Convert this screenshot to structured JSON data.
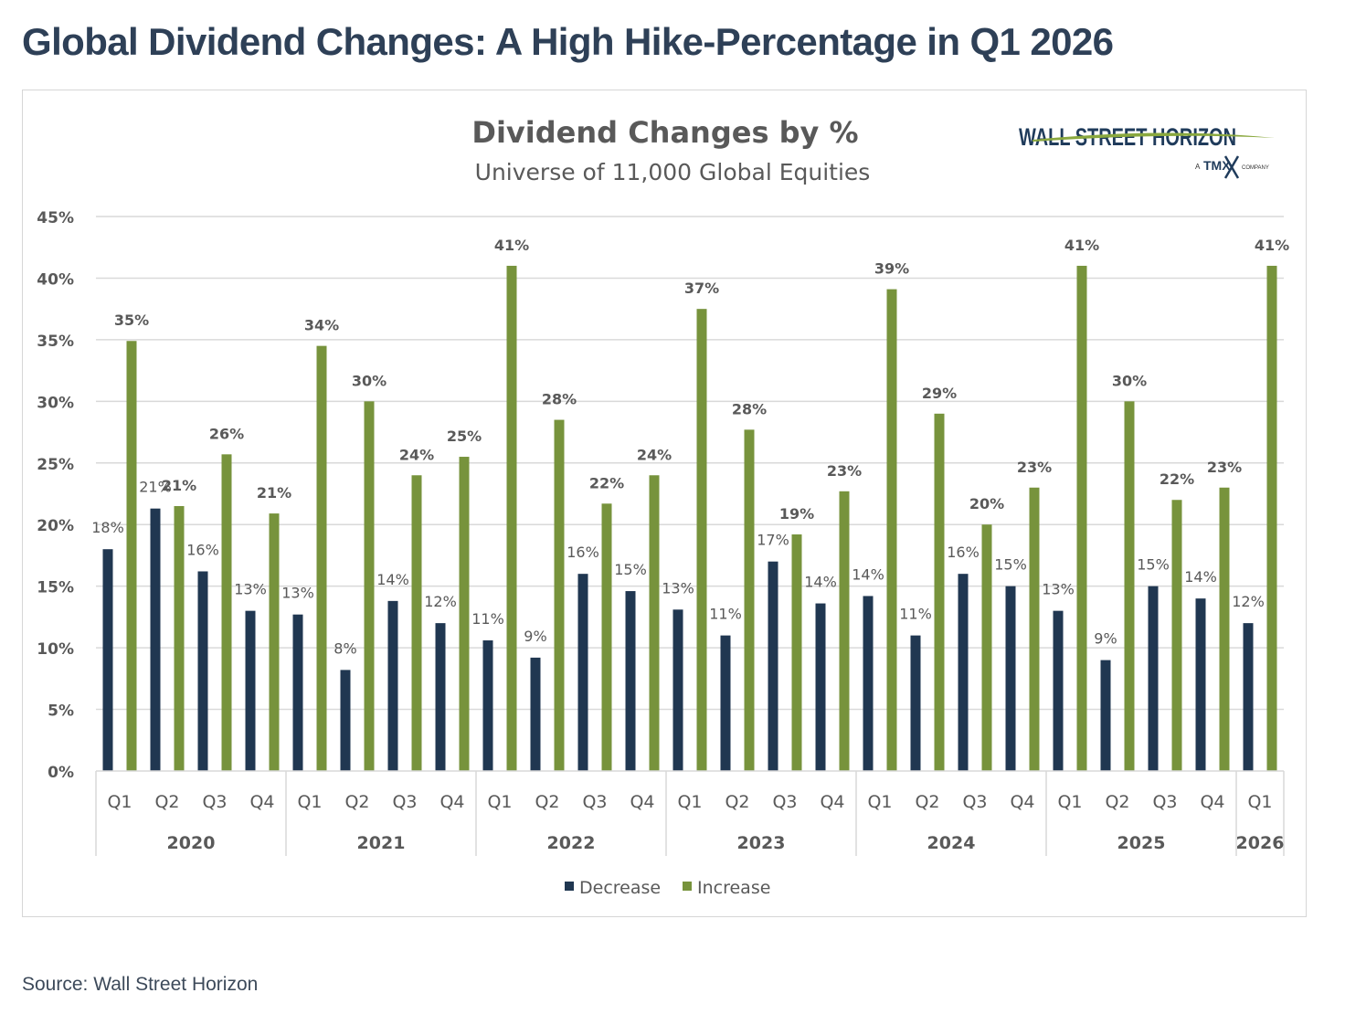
{
  "headline": "Global Dividend Changes: A High Hike-Percentage in Q1 2026",
  "source": "Source: Wall Street Horizon",
  "logo": {
    "text": "WALL STREET HORIZON",
    "tagline_prefix": "A",
    "tagline_brand": "TMX",
    "tagline_suffix": "COMPANY"
  },
  "colors": {
    "decrease": "#203751",
    "increase": "#77933c",
    "grid": "#d9d9d9",
    "text": "#595959"
  },
  "chart_data": {
    "type": "bar",
    "title": "Dividend Changes by %",
    "subtitle": "Universe of 11,000 Global Equities",
    "ylim": [
      0,
      45
    ],
    "yticks": [
      "0%",
      "5%",
      "10%",
      "15%",
      "20%",
      "25%",
      "30%",
      "35%",
      "40%",
      "45%"
    ],
    "ytick_values": [
      0,
      5,
      10,
      15,
      20,
      25,
      30,
      35,
      40,
      45
    ],
    "grid": true,
    "legend_position": "bottom",
    "categories": [
      "Q1",
      "Q2",
      "Q3",
      "Q4",
      "Q1",
      "Q2",
      "Q3",
      "Q4",
      "Q1",
      "Q2",
      "Q3",
      "Q4",
      "Q1",
      "Q2",
      "Q3",
      "Q4",
      "Q1",
      "Q2",
      "Q3",
      "Q4",
      "Q1",
      "Q2",
      "Q3",
      "Q4",
      "Q1"
    ],
    "groups": [
      {
        "label": "2020",
        "count": 4
      },
      {
        "label": "2021",
        "count": 4
      },
      {
        "label": "2022",
        "count": 4
      },
      {
        "label": "2023",
        "count": 4
      },
      {
        "label": "2024",
        "count": 4
      },
      {
        "label": "2025",
        "count": 4
      },
      {
        "label": "2026",
        "count": 1
      }
    ],
    "series": [
      {
        "name": "Decrease",
        "values": [
          18,
          21.3,
          16.2,
          13,
          12.7,
          8.2,
          13.8,
          12,
          10.6,
          9.2,
          16,
          14.6,
          13.1,
          11,
          17,
          13.6,
          14.2,
          11,
          16,
          15,
          13,
          9,
          15,
          14,
          12
        ],
        "labels": [
          "18%",
          "21%",
          "16%",
          "13%",
          "13%",
          "8%",
          "14%",
          "12%",
          "11%",
          "9%",
          "16%",
          "15%",
          "13%",
          "11%",
          "17%",
          "14%",
          "14%",
          "11%",
          "16%",
          "15%",
          "13%",
          "9%",
          "15%",
          "14%",
          "12%"
        ]
      },
      {
        "name": "Increase",
        "values": [
          34.9,
          21.5,
          25.7,
          20.9,
          34.5,
          30,
          24,
          25.5,
          41,
          28.5,
          21.7,
          24,
          37.5,
          27.7,
          19.2,
          22.7,
          39.1,
          29,
          20,
          23,
          41,
          30,
          22,
          23,
          41
        ],
        "labels": [
          "35%",
          "21%",
          "26%",
          "21%",
          "34%",
          "30%",
          "24%",
          "25%",
          "41%",
          "28%",
          "22%",
          "24%",
          "37%",
          "28%",
          "19%",
          "23%",
          "39%",
          "29%",
          "20%",
          "23%",
          "41%",
          "30%",
          "22%",
          "23%",
          "41%"
        ]
      }
    ]
  }
}
